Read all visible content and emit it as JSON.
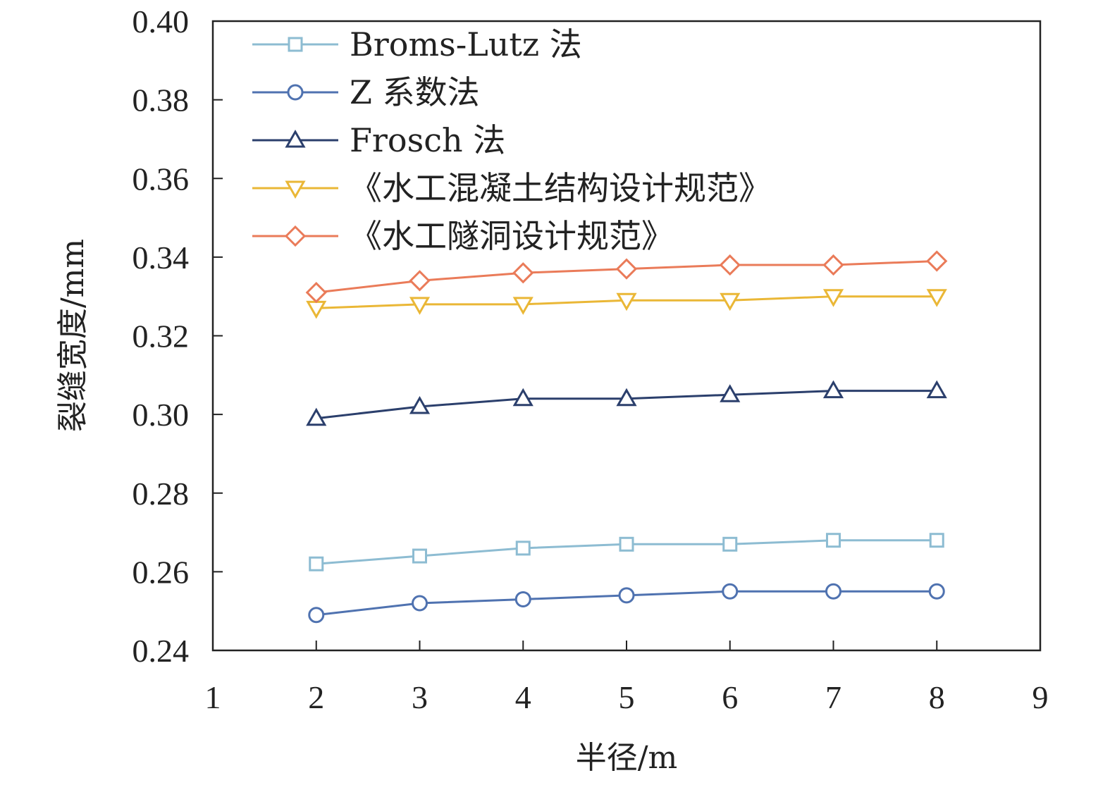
{
  "chart_data": {
    "type": "line",
    "title": "",
    "xlabel": "半径/m",
    "ylabel": "裂缝宽度/mm",
    "xlim": [
      1,
      9
    ],
    "ylim": [
      0.24,
      0.4
    ],
    "xticks": [
      1,
      2,
      3,
      4,
      5,
      6,
      7,
      8,
      9
    ],
    "yticks": [
      "0.24",
      "0.26",
      "0.28",
      "0.30",
      "0.32",
      "0.34",
      "0.36",
      "0.38",
      "0.40"
    ],
    "grid": false,
    "legend_position": "top-left",
    "x": [
      2,
      3,
      4,
      5,
      6,
      7,
      8
    ],
    "series": [
      {
        "name": "Broms-Lutz 法",
        "marker": "square",
        "color": "#8dbcd2",
        "values": [
          0.262,
          0.264,
          0.266,
          0.267,
          0.267,
          0.268,
          0.268
        ]
      },
      {
        "name": "Z 系数法",
        "marker": "circle",
        "color": "#4f72b0",
        "values": [
          0.249,
          0.252,
          0.253,
          0.254,
          0.255,
          0.255,
          0.255
        ]
      },
      {
        "name": "Frosch 法",
        "marker": "triangle-up",
        "color": "#2b3f6c",
        "values": [
          0.299,
          0.302,
          0.304,
          0.304,
          0.305,
          0.306,
          0.306
        ]
      },
      {
        "name": "《水工混凝土结构设计规范》",
        "marker": "triangle-down",
        "color": "#eab736",
        "values": [
          0.327,
          0.328,
          0.328,
          0.329,
          0.329,
          0.33,
          0.33
        ]
      },
      {
        "name": "《水工隧洞设计规范》",
        "marker": "diamond",
        "color": "#ea7b59",
        "values": [
          0.331,
          0.334,
          0.336,
          0.337,
          0.338,
          0.338,
          0.339
        ]
      }
    ]
  }
}
